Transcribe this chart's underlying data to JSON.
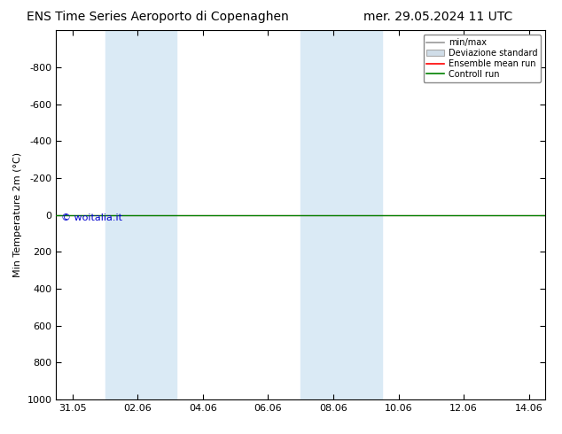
{
  "title_left": "ENS Time Series Aeroporto di Copenaghen",
  "title_right": "mer. 29.05.2024 11 UTC",
  "ylabel": "Min Temperature 2m (°C)",
  "watermark": "© woitalia.it",
  "ylim_top": -1000,
  "ylim_bottom": 1000,
  "yticks": [
    -800,
    -600,
    -400,
    -200,
    0,
    200,
    400,
    600,
    800,
    1000
  ],
  "xtick_labels": [
    "31.05",
    "02.06",
    "04.06",
    "06.06",
    "08.06",
    "10.06",
    "12.06",
    "14.06"
  ],
  "xtick_positions": [
    0,
    2,
    4,
    6,
    8,
    10,
    12,
    14
  ],
  "x_min": -0.5,
  "x_max": 14.5,
  "shaded_bands": [
    {
      "x_start": 1.0,
      "x_end": 3.2
    },
    {
      "x_start": 7.0,
      "x_end": 9.5
    }
  ],
  "shade_color": "#daeaf5",
  "ensemble_mean_color": "#ff0000",
  "control_run_color": "#008000",
  "background_color": "#ffffff",
  "plot_bg_color": "#ffffff",
  "title_fontsize": 10,
  "axis_fontsize": 8,
  "tick_fontsize": 8,
  "watermark_color": "#0000cc",
  "watermark_fontsize": 8
}
